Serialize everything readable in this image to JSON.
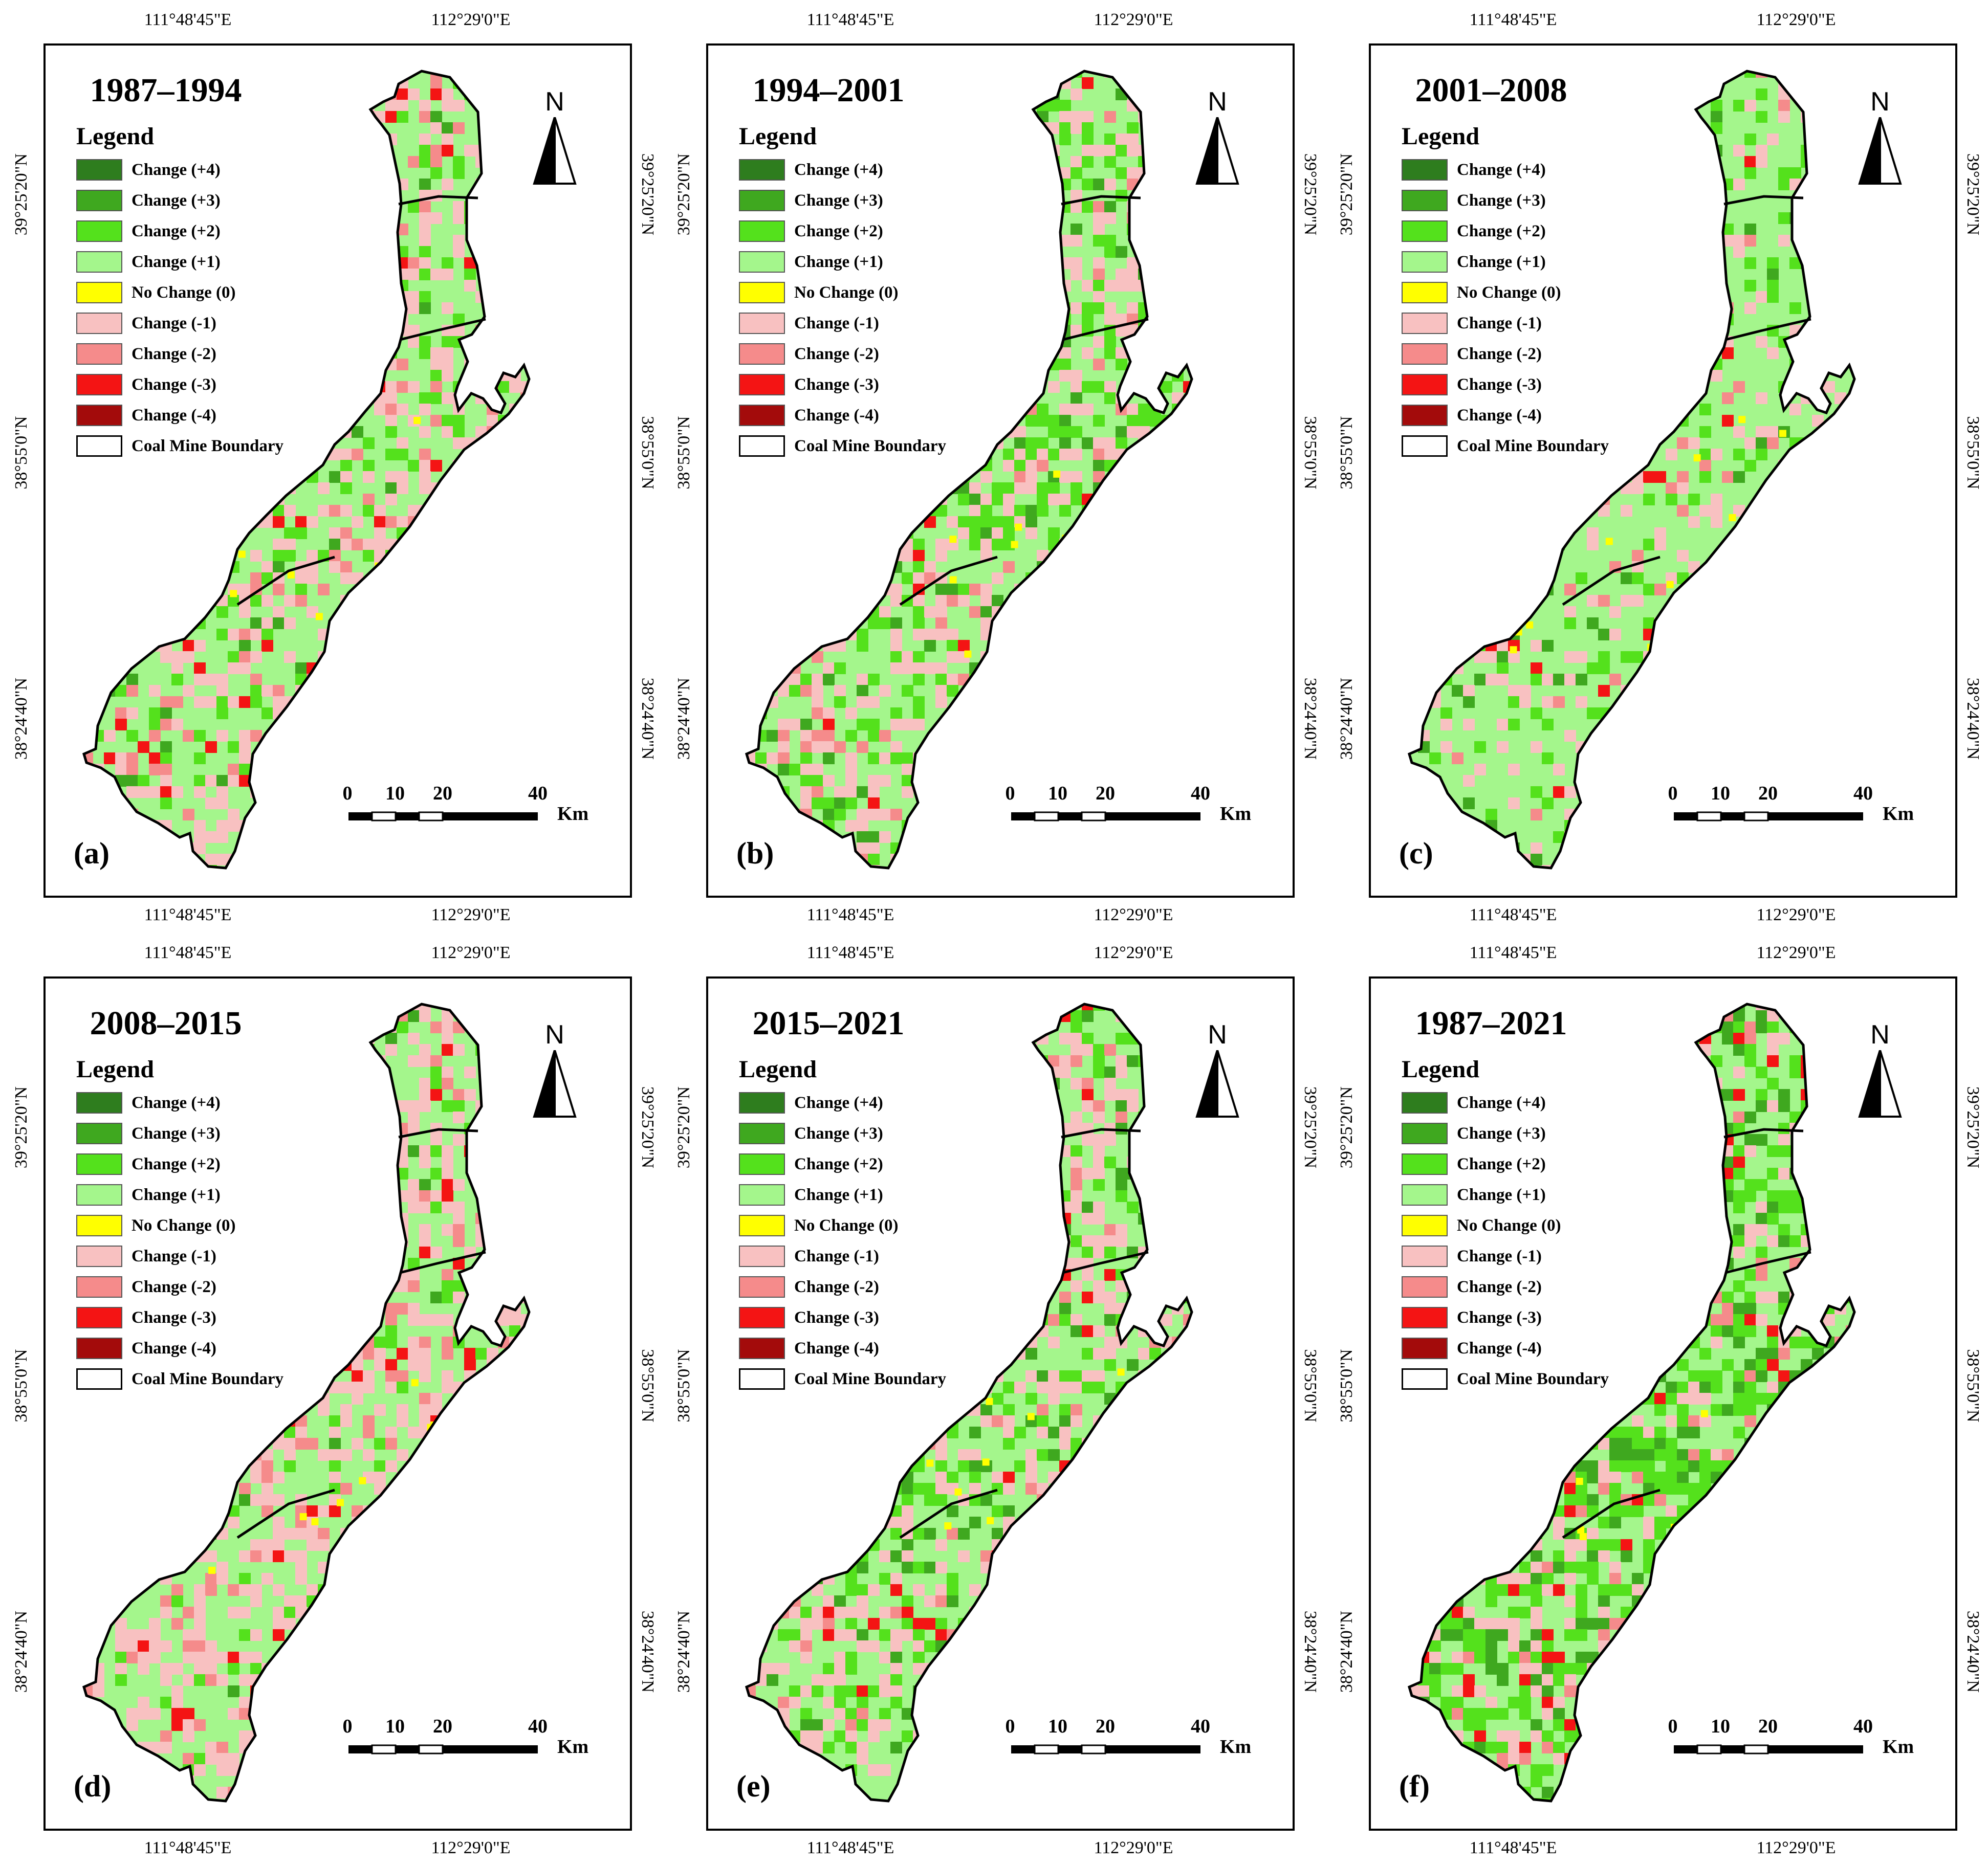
{
  "coords": {
    "lon_left": "111°48'45\"E",
    "lon_right": "112°29'0\"E",
    "lat_top": "39°25'20\"N",
    "lat_mid": "38°55'0\"N",
    "lat_bottom": "38°24'40\"N"
  },
  "north_label": "N",
  "legend": {
    "title": "Legend",
    "items": [
      {
        "label": "Change (+4)",
        "color": "#2e7d1e"
      },
      {
        "label": "Change (+3)",
        "color": "#3fa81f"
      },
      {
        "label": "Change (+2)",
        "color": "#54e11c"
      },
      {
        "label": "Change (+1)",
        "color": "#a4f68c"
      },
      {
        "label": "No Change (0)",
        "color": "#ffff00"
      },
      {
        "label": "Change (-1)",
        "color": "#f8c1c1"
      },
      {
        "label": "Change (-2)",
        "color": "#f58b8b"
      },
      {
        "label": "Change (-3)",
        "color": "#f41414"
      },
      {
        "label": "Change (-4)",
        "color": "#a30b0b"
      },
      {
        "label": "Coal Mine Boundary",
        "color": "#ffffff"
      }
    ]
  },
  "scale": {
    "ticks": [
      "0",
      "10",
      "20",
      "40"
    ],
    "unit": "Km"
  },
  "panels": [
    {
      "tag": "(a)",
      "period": "1987–1994",
      "mix": {
        "plus1": 0.5,
        "plus2": 0.12,
        "plus3": 0.03,
        "minus1": 0.25,
        "minus2": 0.07,
        "minus3": 0.03
      }
    },
    {
      "tag": "(b)",
      "period": "1994–2001",
      "mix": {
        "plus1": 0.45,
        "plus2": 0.18,
        "plus3": 0.07,
        "minus1": 0.25,
        "minus2": 0.04,
        "minus3": 0.01
      }
    },
    {
      "tag": "(c)",
      "period": "2001–2008",
      "mix": {
        "plus1": 0.72,
        "plus2": 0.1,
        "plus3": 0.02,
        "minus1": 0.12,
        "minus2": 0.03,
        "minus3": 0.01
      }
    },
    {
      "tag": "(d)",
      "period": "2008–2015",
      "mix": {
        "plus1": 0.5,
        "plus2": 0.06,
        "plus3": 0.01,
        "minus1": 0.33,
        "minus2": 0.07,
        "minus3": 0.03
      }
    },
    {
      "tag": "(e)",
      "period": "2015–2021",
      "mix": {
        "plus1": 0.48,
        "plus2": 0.15,
        "plus3": 0.06,
        "minus1": 0.24,
        "minus2": 0.05,
        "minus3": 0.02
      }
    },
    {
      "tag": "(f)",
      "period": "1987–2021",
      "mix": {
        "plus1": 0.38,
        "plus2": 0.28,
        "plus3": 0.14,
        "minus1": 0.12,
        "minus2": 0.05,
        "minus3": 0.03
      }
    }
  ]
}
